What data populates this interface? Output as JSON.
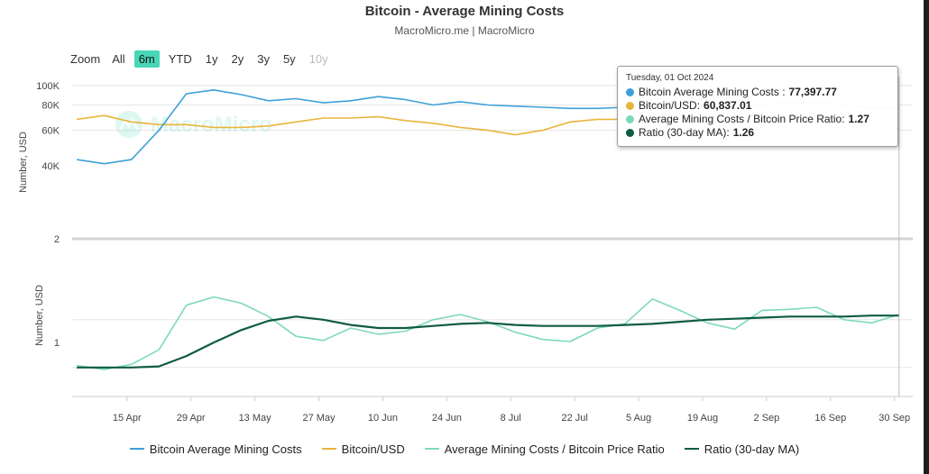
{
  "title": "Bitcoin - Average Mining Costs",
  "subtitle": "MacroMicro.me | MacroMicro",
  "range_selector": {
    "label": "Zoom",
    "buttons": [
      "All",
      "6m",
      "YTD",
      "1y",
      "2y",
      "3y",
      "5y",
      "10y"
    ],
    "active": "6m",
    "disabled": [
      "10y"
    ]
  },
  "colors": {
    "mining_cost": "#3fa0d8",
    "btc_usd": "#e8b53c",
    "ratio": "#7fd8bd",
    "ratio_ma": "#0f5b45",
    "grid": "#e6e6e6",
    "active_button": "#47d6b6"
  },
  "watermark": "MacroMicro",
  "tooltip": {
    "date": "Tuesday, 01 Oct 2024",
    "rows": [
      {
        "label": "Bitcoin Average Mining Costs :",
        "value": "77,397.77",
        "color": "#3fa0d8"
      },
      {
        "label": "Bitcoin/USD:",
        "value": "60,837.01",
        "color": "#e8b53c"
      },
      {
        "label": "Average Mining Costs / Bitcoin Price Ratio:",
        "value": "1.27",
        "color": "#7fd8bd"
      },
      {
        "label": "Ratio (30-day MA):",
        "value": "1.26",
        "color": "#0f5b45"
      }
    ]
  },
  "legend": [
    {
      "label": "Bitcoin Average Mining Costs",
      "color": "#3fa0d8"
    },
    {
      "label": "Bitcoin/USD",
      "color": "#e8b53c"
    },
    {
      "label": "Average Mining Costs / Bitcoin Price Ratio",
      "color": "#7fd8bd"
    },
    {
      "label": "Ratio (30-day MA)",
      "color": "#0f5b45"
    }
  ],
  "chart_data": [
    {
      "type": "line",
      "panel": "top",
      "ylabel": "Number, USD",
      "yscale": "log",
      "yticks": [
        "40K",
        "60K",
        "80K",
        "100K"
      ],
      "ylim": [
        34000,
        105000
      ],
      "series": [
        {
          "name": "Bitcoin Average Mining Costs",
          "x": [
            "2024-04-04",
            "2024-04-10",
            "2024-04-16",
            "2024-04-22",
            "2024-04-28",
            "2024-05-04",
            "2024-05-10",
            "2024-05-16",
            "2024-05-22",
            "2024-05-28",
            "2024-06-03",
            "2024-06-09",
            "2024-06-15",
            "2024-06-21",
            "2024-06-27",
            "2024-07-03",
            "2024-07-09",
            "2024-07-15",
            "2024-07-21",
            "2024-07-27",
            "2024-08-02",
            "2024-08-08",
            "2024-08-14",
            "2024-08-20",
            "2024-08-26",
            "2024-09-01",
            "2024-09-07",
            "2024-09-13",
            "2024-09-19",
            "2024-09-25",
            "2024-10-01"
          ],
          "values": [
            43000,
            41000,
            43000,
            60000,
            91000,
            95000,
            90000,
            84000,
            86000,
            82000,
            84000,
            88000,
            85000,
            80000,
            83000,
            80000,
            79000,
            78000,
            77000,
            77000,
            78000,
            80000,
            82000,
            84000,
            81000,
            80000,
            82000,
            83000,
            80000,
            77000,
            77398
          ]
        },
        {
          "name": "Bitcoin/USD",
          "x": [
            "2024-04-04",
            "2024-04-10",
            "2024-04-16",
            "2024-04-22",
            "2024-04-28",
            "2024-05-04",
            "2024-05-10",
            "2024-05-16",
            "2024-05-22",
            "2024-05-28",
            "2024-06-03",
            "2024-06-09",
            "2024-06-15",
            "2024-06-21",
            "2024-06-27",
            "2024-07-03",
            "2024-07-09",
            "2024-07-15",
            "2024-07-21",
            "2024-07-27",
            "2024-08-02",
            "2024-08-08",
            "2024-08-14",
            "2024-08-20",
            "2024-08-26",
            "2024-09-01",
            "2024-09-07",
            "2024-09-13",
            "2024-09-19",
            "2024-09-25",
            "2024-10-01"
          ],
          "values": [
            68000,
            71000,
            66000,
            64000,
            64000,
            62000,
            62000,
            63000,
            66000,
            69000,
            69000,
            70000,
            67000,
            65000,
            62000,
            60000,
            57000,
            60000,
            66000,
            68000,
            68000,
            64000,
            60000,
            59000,
            64000,
            60000,
            57000,
            58000,
            62000,
            64000,
            60837
          ]
        }
      ]
    },
    {
      "type": "line",
      "panel": "bottom",
      "ylabel": "Number, USD",
      "yticks": [
        "1",
        "2"
      ],
      "ylim": [
        0.48,
        2.0
      ],
      "series": [
        {
          "name": "Average Mining Costs / Bitcoin Price Ratio",
          "x": [
            "2024-04-04",
            "2024-04-10",
            "2024-04-16",
            "2024-04-22",
            "2024-04-28",
            "2024-05-04",
            "2024-05-10",
            "2024-05-16",
            "2024-05-22",
            "2024-05-28",
            "2024-06-03",
            "2024-06-09",
            "2024-06-15",
            "2024-06-21",
            "2024-06-27",
            "2024-07-03",
            "2024-07-09",
            "2024-07-15",
            "2024-07-21",
            "2024-07-27",
            "2024-08-02",
            "2024-08-08",
            "2024-08-14",
            "2024-08-20",
            "2024-08-26",
            "2024-09-01",
            "2024-09-07",
            "2024-09-13",
            "2024-09-19",
            "2024-09-25",
            "2024-10-01"
          ],
          "values": [
            0.78,
            0.74,
            0.79,
            0.93,
            1.36,
            1.44,
            1.38,
            1.25,
            1.06,
            1.02,
            1.14,
            1.08,
            1.11,
            1.22,
            1.27,
            1.2,
            1.1,
            1.03,
            1.01,
            1.14,
            1.18,
            1.42,
            1.31,
            1.19,
            1.13,
            1.31,
            1.32,
            1.34,
            1.22,
            1.19,
            1.27
          ]
        },
        {
          "name": "Ratio (30-day MA)",
          "x": [
            "2024-04-04",
            "2024-04-10",
            "2024-04-16",
            "2024-04-22",
            "2024-04-28",
            "2024-05-04",
            "2024-05-10",
            "2024-05-16",
            "2024-05-22",
            "2024-05-28",
            "2024-06-03",
            "2024-06-09",
            "2024-06-15",
            "2024-06-21",
            "2024-06-27",
            "2024-07-03",
            "2024-07-09",
            "2024-07-15",
            "2024-07-21",
            "2024-07-27",
            "2024-08-02",
            "2024-08-08",
            "2024-08-14",
            "2024-08-20",
            "2024-08-26",
            "2024-09-01",
            "2024-09-07",
            "2024-09-13",
            "2024-09-19",
            "2024-09-25",
            "2024-10-01"
          ],
          "values": [
            0.76,
            0.76,
            0.76,
            0.77,
            0.87,
            1.0,
            1.12,
            1.21,
            1.25,
            1.22,
            1.17,
            1.14,
            1.14,
            1.16,
            1.18,
            1.19,
            1.17,
            1.16,
            1.16,
            1.16,
            1.17,
            1.18,
            1.2,
            1.22,
            1.23,
            1.24,
            1.25,
            1.25,
            1.25,
            1.26,
            1.26
          ]
        }
      ]
    }
  ],
  "x_axis": {
    "ticks": [
      "15 Apr",
      "29 Apr",
      "13 May",
      "27 May",
      "10 Jun",
      "24 Jun",
      "8 Jul",
      "22 Jul",
      "5 Aug",
      "19 Aug",
      "2 Sep",
      "16 Sep",
      "30 Sep"
    ],
    "tick_dates": [
      "2024-04-15",
      "2024-04-29",
      "2024-05-13",
      "2024-05-27",
      "2024-06-10",
      "2024-06-24",
      "2024-07-08",
      "2024-07-22",
      "2024-08-05",
      "2024-08-19",
      "2024-09-02",
      "2024-09-16",
      "2024-09-30"
    ]
  }
}
